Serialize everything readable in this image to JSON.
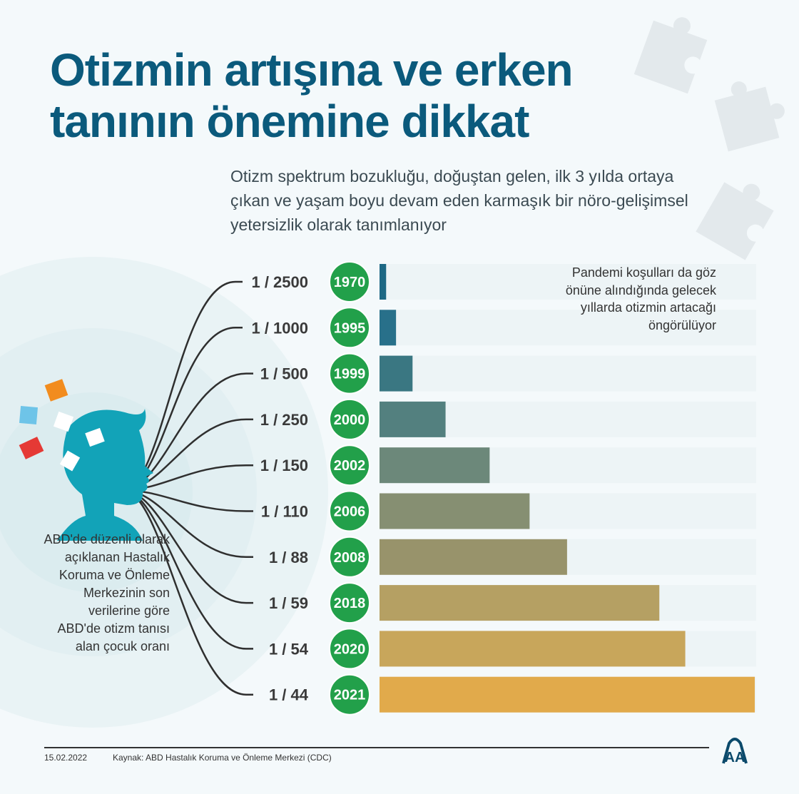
{
  "title": "Otizmin artışına ve erken tanının önemine dikkat",
  "subtitle": "Otizm spektrum bozukluğu, doğuştan gelen, ilk 3 yılda ortaya çıkan ve yaşam boyu devam eden karmaşık bir nöro-gelişimsel yetersizlik olarak tanımlanıyor",
  "note": "Pandemi koşulları da göz önüne alındığında gelecek yıllarda otizmin artacağı öngörülüyor",
  "left_text": "ABD'de düzenli olarak açıklanan Hastalık Koruma ve Önleme Merkezinin son verilerine göre ABD'de otizm tanısı alan çocuk oranı",
  "footer": {
    "date": "15.02.2022",
    "source": "Kaynak: ABD Hastalık Koruma ve Önleme Merkezi (CDC)",
    "logo": "AA"
  },
  "colors": {
    "title": "#0b5a7c",
    "year_circle": "#22a04a",
    "head": "#12a3b8"
  },
  "chart_data": {
    "type": "bar",
    "orientation": "horizontal",
    "title": "ABD'de otizm tanısı alan çocuk oranı",
    "categories": [
      "1970",
      "1995",
      "1999",
      "2000",
      "2002",
      "2006",
      "2008",
      "2018",
      "2020",
      "2021"
    ],
    "labels": [
      "1 / 2500",
      "1 / 1000",
      "1 / 500",
      "1 / 250",
      "1 / 150",
      "1 / 110",
      "1 / 88",
      "1 / 59",
      "1 / 54",
      "1 / 44"
    ],
    "denominators": [
      2500,
      1000,
      500,
      250,
      150,
      110,
      88,
      59,
      54,
      44
    ],
    "values_per_1000": [
      0.4,
      1.0,
      2.0,
      4.0,
      6.67,
      9.09,
      11.36,
      16.95,
      18.52,
      22.73
    ],
    "bar_colors": [
      "#1d6884",
      "#28708a",
      "#3a7782",
      "#53807f",
      "#6c887a",
      "#868f72",
      "#98936b",
      "#b5a063",
      "#c8a65b",
      "#e1aa4b"
    ]
  }
}
